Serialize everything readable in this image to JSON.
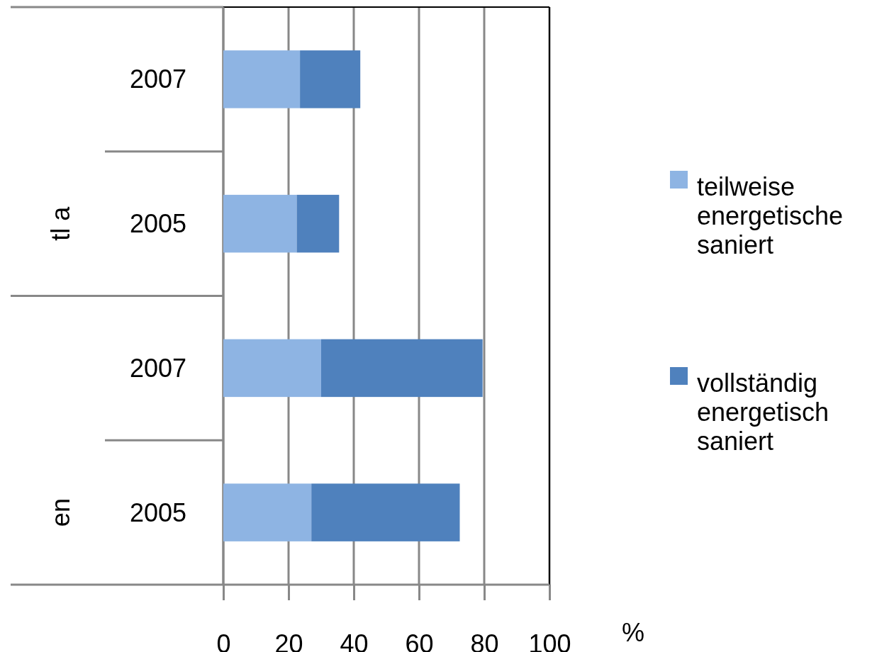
{
  "chart_data": {
    "type": "bar",
    "orientation": "horizontal",
    "stacked": true,
    "categories": [
      "2007",
      "2005",
      "2007",
      "2005"
    ],
    "series": [
      {
        "name": "teilweise energetische saniert",
        "color": "#8eb4e3",
        "values": [
          23.5,
          22.5,
          30,
          27
        ]
      },
      {
        "name": "vollständig energetisch saniert",
        "color": "#4f81bd",
        "values": [
          18.5,
          13,
          49.5,
          45.5
        ]
      }
    ],
    "xlim": [
      0,
      100
    ],
    "xticks": [
      0,
      20,
      40,
      60,
      80,
      100
    ],
    "xlabel": "%",
    "grid": "x",
    "legend": "right",
    "annotations": [
      "tl a",
      "en"
    ]
  }
}
